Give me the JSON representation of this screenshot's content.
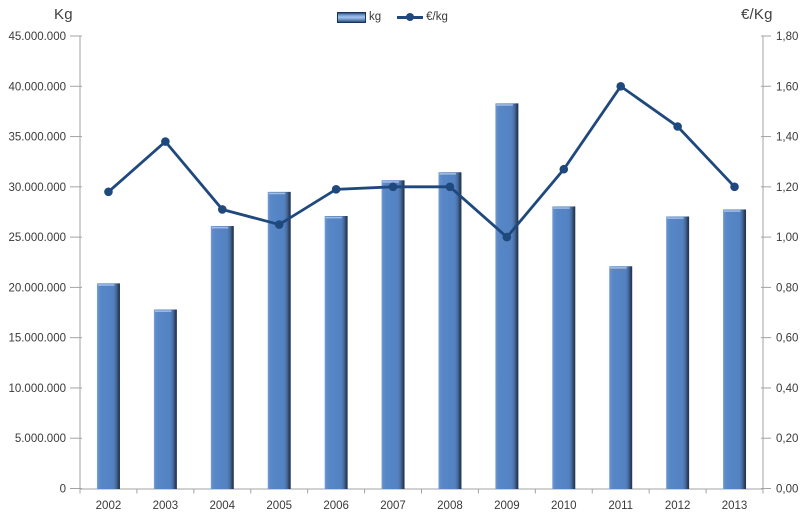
{
  "chart": {
    "left_axis_title": "Kg",
    "right_axis_title": "€/Kg"
  },
  "legend": {
    "items": [
      {
        "label": "kg",
        "series": "bar"
      },
      {
        "label": "€/kg",
        "series": "line"
      }
    ]
  },
  "colors": {
    "bar_fill": "#5585C4",
    "bar_fill_light": "#7FA6D3",
    "bar_edge_dark": "#1E3350",
    "line": "#1F497D",
    "axis_line": "#A3A3A3",
    "text": "#3A3A3A"
  },
  "chart_data": {
    "type": "bar",
    "subtype": "combo-bar-line-dual-axis",
    "title": "",
    "categories": [
      "2002",
      "2003",
      "2004",
      "2005",
      "2006",
      "2007",
      "2008",
      "2009",
      "2010",
      "2011",
      "2012",
      "2013"
    ],
    "series": [
      {
        "name": "kg",
        "type": "bar",
        "axis": "left",
        "values": [
          20400000,
          17800000,
          26100000,
          29500000,
          27100000,
          30650000,
          31450000,
          38300000,
          28050000,
          22100000,
          27050000,
          27750000
        ]
      },
      {
        "name": "€/kg",
        "type": "line",
        "axis": "right",
        "values": [
          1.18,
          1.38,
          1.11,
          1.05,
          1.19,
          1.2,
          1.2,
          1.0,
          1.27,
          1.6,
          1.44,
          1.2
        ]
      }
    ],
    "left_axis": {
      "title": "Kg",
      "min": 0,
      "max": 45000000,
      "step": 5000000,
      "tick_labels": [
        "0",
        "5.000.000",
        "10.000.000",
        "15.000.000",
        "20.000.000",
        "25.000.000",
        "30.000.000",
        "35.000.000",
        "40.000.000",
        "45.000.000"
      ]
    },
    "right_axis": {
      "title": "€/Kg",
      "min": 0,
      "max": 1.8,
      "step": 0.2,
      "tick_labels": [
        "0,00",
        "0,20",
        "0,40",
        "0,60",
        "0,80",
        "1,00",
        "1,20",
        "1,40",
        "1,60",
        "1,80"
      ]
    },
    "grid": false,
    "legend_position": "top-center"
  }
}
